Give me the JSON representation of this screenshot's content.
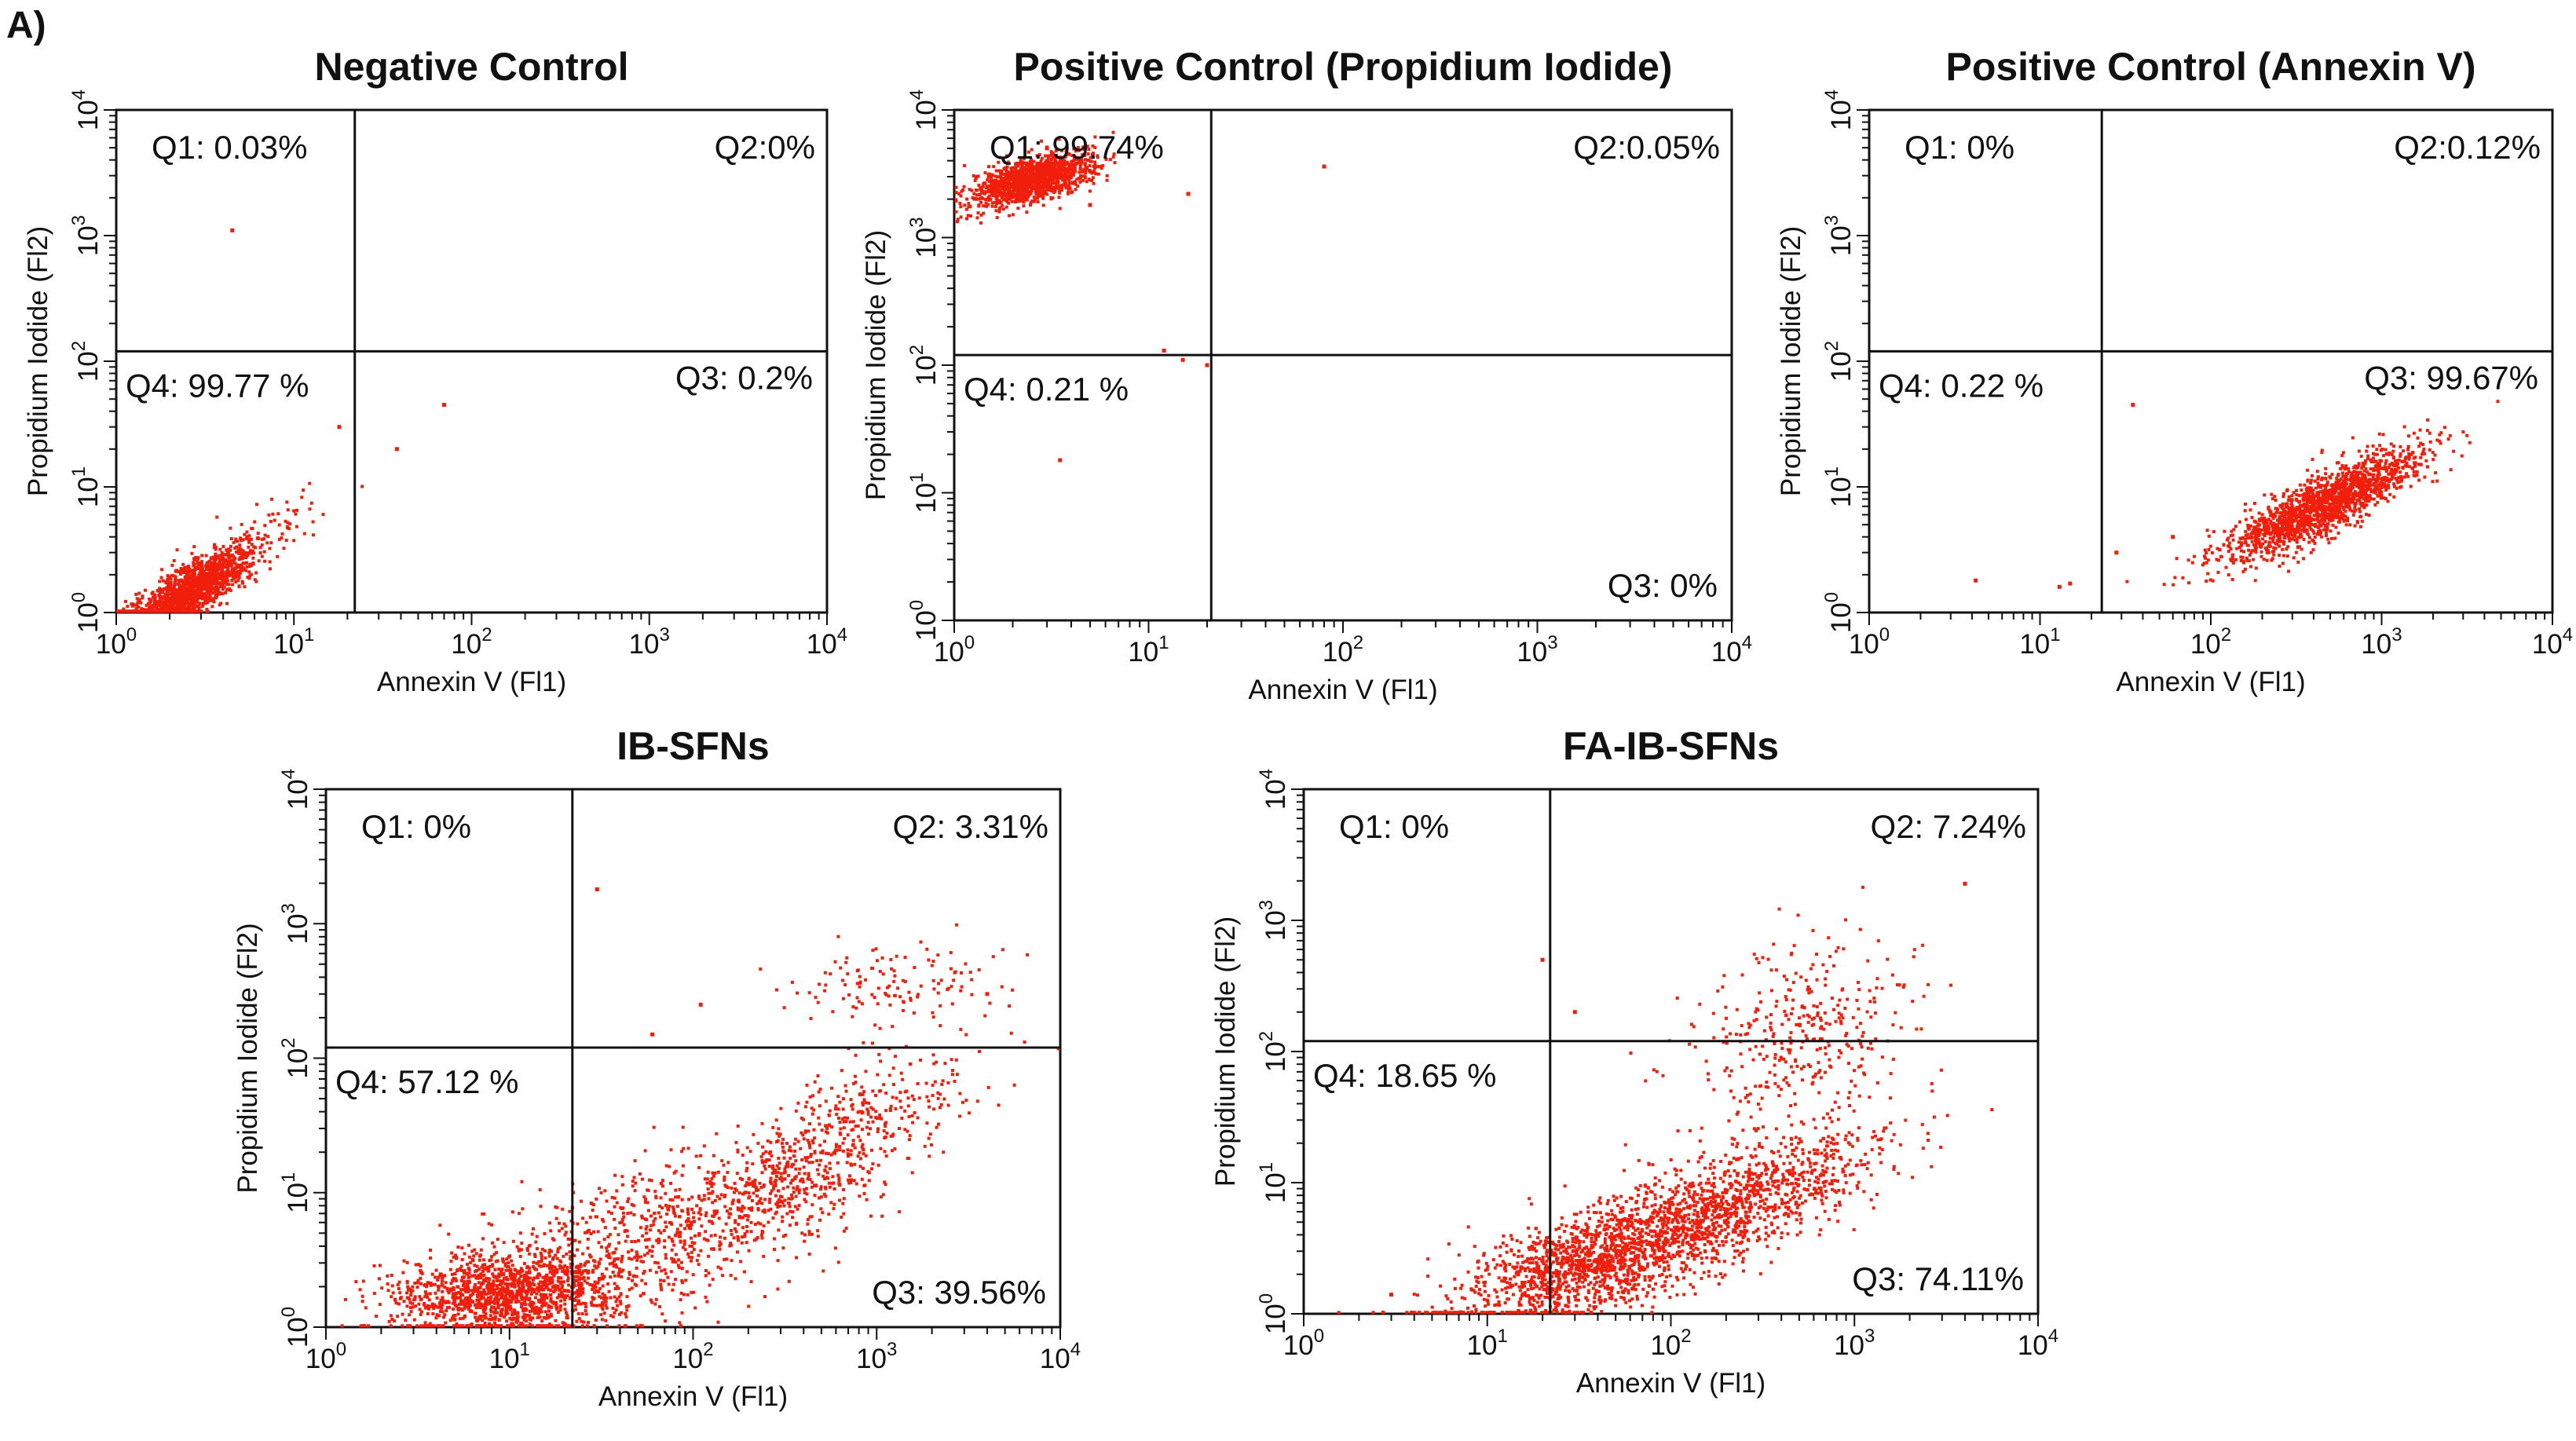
{
  "figure": {
    "panel_label": "A)",
    "colors": {
      "dots": "#f01e0a",
      "axes": "#111111",
      "background": "#ffffff"
    }
  },
  "chart_data": [
    {
      "type": "scatter",
      "title": "Negative Control",
      "xlabel": "Annexin V (Fl1)",
      "ylabel": "Propidium Iodide (Fl2)",
      "xscale": "log",
      "yscale": "log",
      "xlim": [
        1,
        10000
      ],
      "ylim": [
        1,
        10000
      ],
      "xticks": [
        {
          "base": "10",
          "exp": "0"
        },
        {
          "base": "10",
          "exp": "1"
        },
        {
          "base": "10",
          "exp": "2"
        },
        {
          "base": "10",
          "exp": "3"
        },
        {
          "base": "10",
          "exp": "4"
        }
      ],
      "yticks": [
        {
          "base": "10",
          "exp": "0"
        },
        {
          "base": "10",
          "exp": "1"
        },
        {
          "base": "10",
          "exp": "2"
        },
        {
          "base": "10",
          "exp": "3"
        },
        {
          "base": "10",
          "exp": "4"
        }
      ],
      "gate": {
        "x": 22,
        "y": 120
      },
      "quadrants": {
        "Q1": "Q1: 0.03%",
        "Q2": "Q2:0%",
        "Q3": "Q3: 0.2%",
        "Q4": "Q4: 99.77 %"
      },
      "populations": [
        {
          "count": 1500,
          "cx": 0.42,
          "cy": 0.18,
          "sx": 0.17,
          "sy": 0.17,
          "rho": 0.8
        },
        {
          "count": 60,
          "cx": 0.85,
          "cy": 0.65,
          "sx": 0.2,
          "sy": 0.15,
          "rho": 0.6
        }
      ],
      "outliers": [
        [
          4.5,
          1100
        ],
        [
          38,
          20
        ],
        [
          70,
          45
        ],
        [
          18,
          30
        ]
      ]
    },
    {
      "type": "scatter",
      "title": "Positive Control (Propidium Iodide)",
      "xlabel": "Annexin V (Fl1)",
      "ylabel": "Propidium Iodide (Fl2)",
      "xscale": "log",
      "yscale": "log",
      "xlim": [
        1,
        10000
      ],
      "ylim": [
        1,
        10000
      ],
      "xticks": [
        {
          "base": "10",
          "exp": "0"
        },
        {
          "base": "10",
          "exp": "1"
        },
        {
          "base": "10",
          "exp": "2"
        },
        {
          "base": "10",
          "exp": "3"
        },
        {
          "base": "10",
          "exp": "4"
        }
      ],
      "yticks": [
        {
          "base": "10",
          "exp": "0"
        },
        {
          "base": "10",
          "exp": "1"
        },
        {
          "base": "10",
          "exp": "2"
        },
        {
          "base": "10",
          "exp": "3"
        },
        {
          "base": "10",
          "exp": "4"
        }
      ],
      "gate": {
        "x": 21,
        "y": 120
      },
      "quadrants": {
        "Q1": "Q1: 99.74%",
        "Q2": "Q2:0.05%",
        "Q3": "Q3: 0%",
        "Q4": "Q4: 0.21 %"
      },
      "populations": [
        {
          "count": 1300,
          "cx": 0.4,
          "cy": 3.45,
          "sx": 0.15,
          "sy": 0.1,
          "rho": 0.55
        }
      ],
      "outliers": [
        [
          80,
          3600
        ],
        [
          12,
          130
        ],
        [
          15,
          110
        ],
        [
          20,
          100
        ],
        [
          3.5,
          18
        ],
        [
          3,
          5000
        ],
        [
          16,
          2200
        ],
        [
          5,
          1800
        ]
      ]
    },
    {
      "type": "scatter",
      "title": "Positive Control (Annexin V)",
      "xlabel": "Annexin V (Fl1)",
      "ylabel": "Propidium Iodide (Fl2)",
      "xscale": "log",
      "yscale": "log",
      "xlim": [
        1,
        10000
      ],
      "ylim": [
        1,
        10000
      ],
      "xticks": [
        {
          "base": "10",
          "exp": "0"
        },
        {
          "base": "10",
          "exp": "1"
        },
        {
          "base": "10",
          "exp": "2"
        },
        {
          "base": "10",
          "exp": "3"
        },
        {
          "base": "10",
          "exp": "4"
        }
      ],
      "yticks": [
        {
          "base": "10",
          "exp": "0"
        },
        {
          "base": "10",
          "exp": "1"
        },
        {
          "base": "10",
          "exp": "2"
        },
        {
          "base": "10",
          "exp": "3"
        },
        {
          "base": "10",
          "exp": "4"
        }
      ],
      "gate": {
        "x": 23,
        "y": 120
      },
      "quadrants": {
        "Q1": "Q1: 0%",
        "Q2": "Q2:0.12%",
        "Q3": "Q3: 99.67%",
        "Q4": "Q4: 0.22 %"
      },
      "populations": [
        {
          "count": 1600,
          "cx": 2.65,
          "cy": 0.85,
          "sx": 0.28,
          "sy": 0.22,
          "rho": 0.85
        }
      ],
      "outliers": [
        [
          4.2,
          1.8
        ],
        [
          13,
          1.6
        ],
        [
          15,
          1.7
        ],
        [
          35,
          45
        ],
        [
          28,
          3
        ],
        [
          60,
          4
        ]
      ]
    },
    {
      "type": "scatter",
      "title": "IB-SFNs",
      "xlabel": "Annexin V (Fl1)",
      "ylabel": "Propidium Iodide (Fl2)",
      "xscale": "log",
      "yscale": "log",
      "xlim": [
        1,
        10000
      ],
      "ylim": [
        1,
        10000
      ],
      "xticks": [
        {
          "base": "10",
          "exp": "0"
        },
        {
          "base": "10",
          "exp": "1"
        },
        {
          "base": "10",
          "exp": "2"
        },
        {
          "base": "10",
          "exp": "3"
        },
        {
          "base": "10",
          "exp": "4"
        }
      ],
      "yticks": [
        {
          "base": "10",
          "exp": "0"
        },
        {
          "base": "10",
          "exp": "1"
        },
        {
          "base": "10",
          "exp": "2"
        },
        {
          "base": "10",
          "exp": "3"
        },
        {
          "base": "10",
          "exp": "4"
        }
      ],
      "gate": {
        "x": 22,
        "y": 120
      },
      "quadrants": {
        "Q1": "Q1: 0%",
        "Q2": "Q2: 3.31%",
        "Q3": "Q3: 39.56%",
        "Q4": "Q4: 57.12 %"
      },
      "populations": [
        {
          "count": 1300,
          "cx": 1.0,
          "cy": 0.25,
          "sx": 0.3,
          "sy": 0.15,
          "rho": 0.15
        },
        {
          "count": 750,
          "cx": 1.75,
          "cy": 0.65,
          "sx": 0.5,
          "sy": 0.35,
          "rho": 0.6
        },
        {
          "count": 650,
          "cx": 2.7,
          "cy": 1.25,
          "sx": 0.4,
          "sy": 0.4,
          "rho": 0.75
        },
        {
          "count": 120,
          "cx": 3.05,
          "cy": 2.55,
          "sx": 0.3,
          "sy": 0.17,
          "rho": 0.2
        }
      ],
      "outliers": [
        [
          30,
          1800
        ],
        [
          110,
          250
        ],
        [
          60,
          150
        ],
        [
          4000,
          300
        ]
      ]
    },
    {
      "type": "scatter",
      "title": "FA-IB-SFNs",
      "xlabel": "Annexin V (Fl1)",
      "ylabel": "Propidium Iodide (Fl2)",
      "xscale": "log",
      "yscale": "log",
      "xlim": [
        1,
        10000
      ],
      "ylim": [
        1,
        10000
      ],
      "xticks": [
        {
          "base": "10",
          "exp": "0"
        },
        {
          "base": "10",
          "exp": "1"
        },
        {
          "base": "10",
          "exp": "2"
        },
        {
          "base": "10",
          "exp": "3"
        },
        {
          "base": "10",
          "exp": "4"
        }
      ],
      "yticks": [
        {
          "base": "10",
          "exp": "0"
        },
        {
          "base": "10",
          "exp": "1"
        },
        {
          "base": "10",
          "exp": "2"
        },
        {
          "base": "10",
          "exp": "3"
        },
        {
          "base": "10",
          "exp": "4"
        }
      ],
      "gate": {
        "x": 22,
        "y": 120
      },
      "quadrants": {
        "Q1": "Q1: 0%",
        "Q2": "Q2: 7.24%",
        "Q3": "Q3: 74.11%",
        "Q4": "Q4: 18.65 %"
      },
      "populations": [
        {
          "count": 1700,
          "cx": 1.65,
          "cy": 0.45,
          "sx": 0.42,
          "sy": 0.28,
          "rho": 0.7
        },
        {
          "count": 750,
          "cx": 2.45,
          "cy": 0.9,
          "sx": 0.4,
          "sy": 0.3,
          "rho": 0.7
        },
        {
          "count": 350,
          "cx": 2.65,
          "cy": 2.1,
          "sx": 0.3,
          "sy": 0.38,
          "rho": 0.3
        }
      ],
      "outliers": [
        [
          20,
          500
        ],
        [
          4000,
          1900
        ],
        [
          3,
          1.4
        ],
        [
          30,
          200
        ]
      ]
    }
  ]
}
